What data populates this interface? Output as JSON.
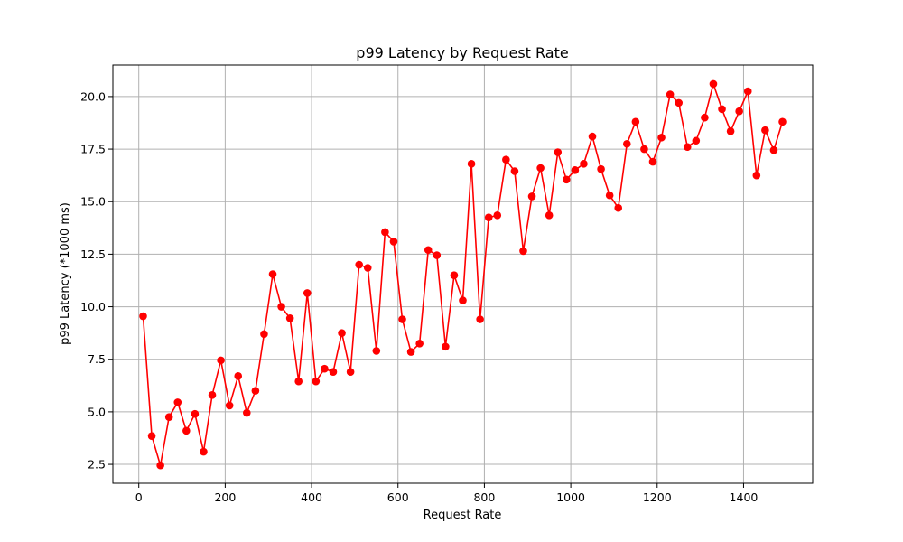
{
  "chart_data": {
    "type": "line",
    "title": "p99 Latency by Request Rate",
    "xlabel": "Request Rate",
    "ylabel": "p99 Latency (*1000 ms)",
    "xlim": [
      -60,
      1560
    ],
    "ylim": [
      1.6,
      21.5
    ],
    "x_ticks": [
      0,
      200,
      400,
      600,
      800,
      1000,
      1200,
      1400
    ],
    "x_tick_labels": [
      "0",
      "200",
      "400",
      "600",
      "800",
      "1000",
      "1200",
      "1400"
    ],
    "y_ticks": [
      2.5,
      5.0,
      7.5,
      10.0,
      12.5,
      15.0,
      17.5,
      20.0
    ],
    "y_tick_labels": [
      "2.5",
      "5.0",
      "7.5",
      "10.0",
      "12.5",
      "15.0",
      "17.5",
      "20.0"
    ],
    "grid": true,
    "series": [
      {
        "color": "#ff0000",
        "marker": "circle",
        "x": [
          10,
          30,
          50,
          70,
          90,
          110,
          130,
          150,
          170,
          190,
          210,
          230,
          250,
          270,
          290,
          310,
          330,
          350,
          370,
          390,
          410,
          430,
          450,
          470,
          490,
          510,
          530,
          550,
          570,
          590,
          610,
          630,
          650,
          670,
          690,
          710,
          730,
          750,
          770,
          790,
          810,
          830,
          850,
          870,
          890,
          910,
          930,
          950,
          970,
          990,
          1010,
          1030,
          1050,
          1070,
          1090,
          1110,
          1130,
          1150,
          1170,
          1190,
          1210,
          1230,
          1250,
          1270,
          1290,
          1310,
          1330,
          1350,
          1370,
          1390,
          1410,
          1430,
          1450,
          1470,
          1490
        ],
        "y": [
          9.55,
          3.85,
          2.45,
          4.75,
          5.45,
          4.1,
          4.9,
          3.1,
          5.8,
          7.45,
          5.3,
          6.7,
          4.95,
          6.0,
          8.7,
          11.55,
          10.0,
          9.45,
          6.45,
          10.65,
          6.45,
          7.05,
          6.9,
          8.75,
          6.9,
          12.0,
          11.85,
          7.9,
          13.55,
          13.1,
          9.4,
          7.85,
          8.25,
          12.7,
          12.45,
          8.1,
          11.5,
          10.3,
          16.8,
          9.4,
          14.25,
          14.35,
          17.0,
          16.45,
          12.65,
          15.25,
          16.6,
          14.35,
          17.35,
          16.05,
          16.5,
          16.8,
          18.1,
          16.55,
          15.3,
          14.7,
          17.75,
          18.8,
          17.5,
          16.9,
          18.05,
          20.1,
          19.7,
          17.6,
          17.9,
          19.0,
          20.6,
          19.4,
          18.35,
          19.3,
          20.25,
          16.25,
          18.4,
          17.45,
          18.8
        ]
      }
    ]
  }
}
